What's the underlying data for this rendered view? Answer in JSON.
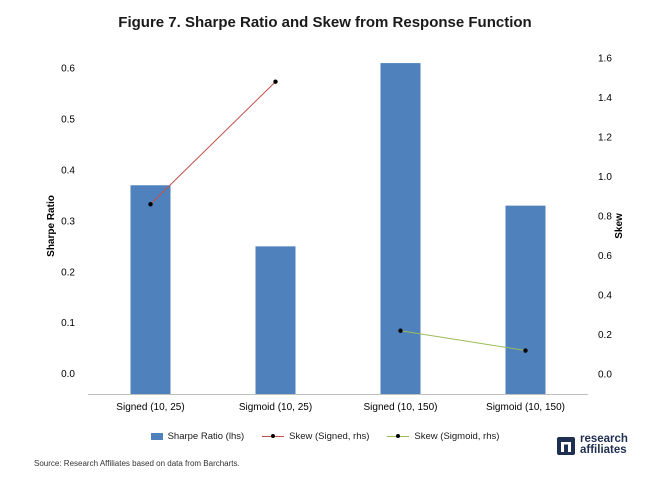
{
  "colors": {
    "bar": "#4f81bd",
    "skew_signed": "#c0504d",
    "skew_sigmoid": "#9bbb59",
    "marker": "#000000",
    "logo": "#1f2f52"
  },
  "chart_data": {
    "type": "bar",
    "title": "Figure 7. Sharpe Ratio and Skew from Response Function",
    "categories": [
      "Signed (10, 25)",
      "Sigmoid (10, 25)",
      "Signed (10, 150)",
      "Sigmoid (10, 150)"
    ],
    "ylabel": "Sharpe Ratio",
    "y2label": "Skew",
    "ylim": [
      -0.04,
      0.62
    ],
    "yticks": [
      0.0,
      0.1,
      0.2,
      0.3,
      0.4,
      0.5,
      0.6
    ],
    "ytick_labels": [
      "0.0",
      "0.1",
      "0.2",
      "0.3",
      "0.4",
      "0.5",
      "0.6"
    ],
    "y2lim": [
      -0.1,
      1.6
    ],
    "y2ticks": [
      0.0,
      0.2,
      0.4,
      0.6,
      0.8,
      1.0,
      1.2,
      1.4,
      1.6
    ],
    "y2tick_labels": [
      "0.0",
      "0.2",
      "0.4",
      "0.6",
      "0.8",
      "1.0",
      "1.2",
      "1.4",
      "1.6"
    ],
    "grid": false,
    "legend_position": "bottom",
    "series": [
      {
        "name": "Sharpe Ratio (lhs)",
        "kind": "bar",
        "axis": "left",
        "values": [
          0.37,
          0.25,
          0.61,
          0.33
        ]
      },
      {
        "name": "Skew (Signed, rhs)",
        "kind": "line",
        "axis": "right",
        "points": [
          {
            "category": "Signed (10, 25)",
            "value": 0.86
          },
          {
            "category": "Sigmoid (10, 25)",
            "value": 1.48
          }
        ]
      },
      {
        "name": "Skew (Sigmoid, rhs)",
        "kind": "line",
        "axis": "right",
        "points": [
          {
            "category": "Signed (10, 150)",
            "value": 0.22
          },
          {
            "category": "Sigmoid (10, 150)",
            "value": 0.12
          }
        ]
      }
    ]
  },
  "footer": {
    "source": "Source: Research Affiliates based on data from Barcharts.",
    "logo_line1": "research",
    "logo_line2": "affiliates"
  }
}
